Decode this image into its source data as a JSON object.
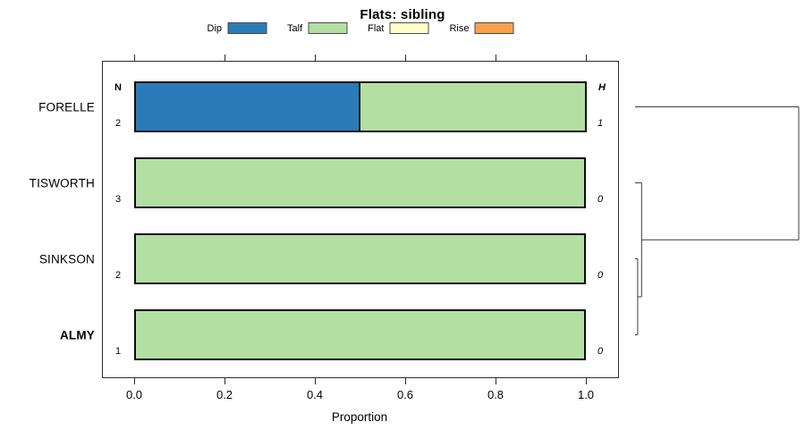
{
  "title": "Flats: sibling",
  "legend": {
    "items": [
      {
        "label": "Dip",
        "color": "#2b7bb9"
      },
      {
        "label": "Talf",
        "color": "#b3dfa3"
      },
      {
        "label": "Flat",
        "color": "#feffc9"
      },
      {
        "label": "Rise",
        "color": "#f9a14e"
      }
    ]
  },
  "chart_data": {
    "type": "bar",
    "variant": "horizontal-stacked-proportion-with-dendrogram",
    "title": "Flats: sibling",
    "xlabel": "Proportion",
    "xlim": [
      0,
      1
    ],
    "xtick_labels": [
      "0.0",
      "0.2",
      "0.4",
      "0.6",
      "0.8",
      "1.0"
    ],
    "xtick_values": [
      0,
      0.2,
      0.4,
      0.6,
      0.8,
      1.0
    ],
    "grid": false,
    "legend_position": "top",
    "categories": [
      "Dip",
      "Talf",
      "Flat",
      "Rise"
    ],
    "col_header_left": "N",
    "col_header_right": "H",
    "rows": [
      {
        "label": "FORELLE",
        "bold": false,
        "n": "2",
        "h": "1",
        "segments": [
          {
            "category": "Dip",
            "value": 0.5
          },
          {
            "category": "Talf",
            "value": 0.5
          }
        ]
      },
      {
        "label": "TISWORTH",
        "bold": false,
        "n": "3",
        "h": "0",
        "segments": [
          {
            "category": "Talf",
            "value": 1.0
          }
        ]
      },
      {
        "label": "SINKSON",
        "bold": false,
        "n": "2",
        "h": "0",
        "segments": [
          {
            "category": "Talf",
            "value": 1.0
          }
        ]
      },
      {
        "label": "ALMY",
        "bold": true,
        "n": "1",
        "h": "0",
        "segments": [
          {
            "category": "Talf",
            "value": 1.0
          }
        ]
      }
    ],
    "dendrogram": {
      "side": "right",
      "leaf_order": [
        "FORELLE",
        "TISWORTH",
        "SINKSON",
        "ALMY"
      ],
      "max_height": 1.0,
      "merges": [
        {
          "id": "m0",
          "children": [
            "SINKSON",
            "ALMY"
          ],
          "height": 0.016
        },
        {
          "id": "m1",
          "children": [
            "TISWORTH",
            "m0"
          ],
          "height": 0.04
        },
        {
          "id": "m2",
          "children": [
            "FORELLE",
            "m1"
          ],
          "height": 1.0
        }
      ]
    }
  }
}
